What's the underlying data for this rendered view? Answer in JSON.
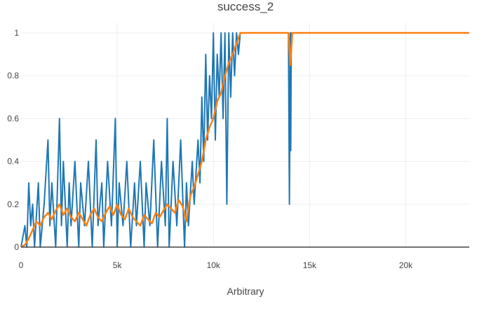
{
  "chart_data": {
    "type": "line",
    "title": "success_2",
    "xlabel": "Arbitrary",
    "ylabel": "",
    "xlim": [
      0,
      23300
    ],
    "ylim": [
      0,
      1
    ],
    "grid": true,
    "legend": "none",
    "x_ticks": [
      {
        "value": 0,
        "label": "0"
      },
      {
        "value": 5000,
        "label": "5k"
      },
      {
        "value": 10000,
        "label": "10k"
      },
      {
        "value": 15000,
        "label": "15k"
      },
      {
        "value": 20000,
        "label": "20k"
      }
    ],
    "y_ticks": [
      {
        "value": 0,
        "label": "0"
      },
      {
        "value": 0.2,
        "label": "0.2"
      },
      {
        "value": 0.4,
        "label": "0.4"
      },
      {
        "value": 0.6,
        "label": "0.6"
      },
      {
        "value": 0.8,
        "label": "0.8"
      },
      {
        "value": 1,
        "label": "1"
      }
    ],
    "series": [
      {
        "color": "#1f77b4",
        "style": "raw",
        "x": [
          0,
          200,
          300,
          400,
          500,
          600,
          700,
          900,
          1000,
          1200,
          1400,
          1500,
          1600,
          1800,
          2000,
          2100,
          2200,
          2400,
          2500,
          2600,
          2800,
          3000,
          3100,
          3300,
          3500,
          3700,
          3900,
          4000,
          4200,
          4300,
          4500,
          4700,
          4900,
          5000,
          5100,
          5300,
          5500,
          5700,
          5900,
          6000,
          6200,
          6400,
          6500,
          6700,
          6900,
          7100,
          7300,
          7500,
          7600,
          7700,
          7900,
          8100,
          8300,
          8500,
          8600,
          8700,
          8900,
          9000,
          9200,
          9300,
          9400,
          9500,
          9600,
          9700,
          9800,
          9900,
          10000,
          10100,
          10200,
          10300,
          10400,
          10500,
          10600,
          10700,
          10800,
          10900,
          11000,
          11100,
          11200,
          11300,
          11400,
          11500,
          12000,
          13000,
          13900,
          13950,
          14000,
          14020,
          14050,
          14100,
          15000,
          18000,
          20000,
          23300
        ],
        "values": [
          0,
          0.1,
          0,
          0.3,
          0.1,
          0.2,
          0,
          0.3,
          0,
          0.2,
          0.5,
          0.1,
          0.3,
          0,
          0.6,
          0.1,
          0.4,
          0,
          0.3,
          0.1,
          0.4,
          0,
          0.3,
          0.1,
          0.4,
          0,
          0.5,
          0.1,
          0.3,
          0,
          0.4,
          0.1,
          0.6,
          0,
          0.3,
          0.1,
          0.4,
          0,
          0.3,
          0.1,
          0.4,
          0,
          0.3,
          0.1,
          0.5,
          0,
          0.4,
          0.1,
          0.6,
          0,
          0.4,
          0.1,
          0.5,
          0,
          0.3,
          0.1,
          0.4,
          0.2,
          0.5,
          0.3,
          0.7,
          0.4,
          0.9,
          0.5,
          0.8,
          0.6,
          1,
          0.5,
          0.9,
          0.7,
          1,
          0.6,
          1,
          0.2,
          1,
          0.7,
          1,
          0.8,
          1,
          0.9,
          1,
          1,
          1,
          1,
          1,
          0.2,
          1,
          0.45,
          1,
          1,
          1,
          1,
          1,
          1
        ]
      },
      {
        "color": "#ff7f0e",
        "style": "smoothed",
        "x": [
          0,
          200,
          400,
          600,
          800,
          1000,
          1200,
          1400,
          1600,
          1800,
          2000,
          2200,
          2400,
          2600,
          2800,
          3000,
          3200,
          3400,
          3600,
          3800,
          4000,
          4200,
          4400,
          4600,
          4800,
          5000,
          5200,
          5400,
          5600,
          5800,
          6000,
          6200,
          6400,
          6600,
          6800,
          7000,
          7200,
          7400,
          7600,
          7800,
          8000,
          8200,
          8400,
          8600,
          8800,
          9000,
          9200,
          9400,
          9600,
          9800,
          10000,
          10200,
          10400,
          10600,
          10800,
          11000,
          11200,
          11400,
          11600,
          12000,
          13000,
          13900,
          14000,
          14100,
          15000,
          18000,
          20000,
          23300
        ],
        "values": [
          0,
          0.01,
          0.04,
          0.08,
          0.12,
          0.1,
          0.14,
          0.16,
          0.13,
          0.17,
          0.2,
          0.15,
          0.18,
          0.14,
          0.12,
          0.16,
          0.13,
          0.1,
          0.15,
          0.18,
          0.14,
          0.12,
          0.16,
          0.19,
          0.15,
          0.2,
          0.15,
          0.13,
          0.18,
          0.14,
          0.12,
          0.1,
          0.15,
          0.13,
          0.11,
          0.16,
          0.14,
          0.17,
          0.2,
          0.18,
          0.16,
          0.22,
          0.19,
          0.12,
          0.24,
          0.28,
          0.34,
          0.4,
          0.5,
          0.56,
          0.6,
          0.68,
          0.72,
          0.8,
          0.86,
          0.9,
          0.95,
          1,
          1,
          1,
          1,
          1,
          0.85,
          1,
          1,
          1,
          1,
          1
        ]
      }
    ]
  }
}
